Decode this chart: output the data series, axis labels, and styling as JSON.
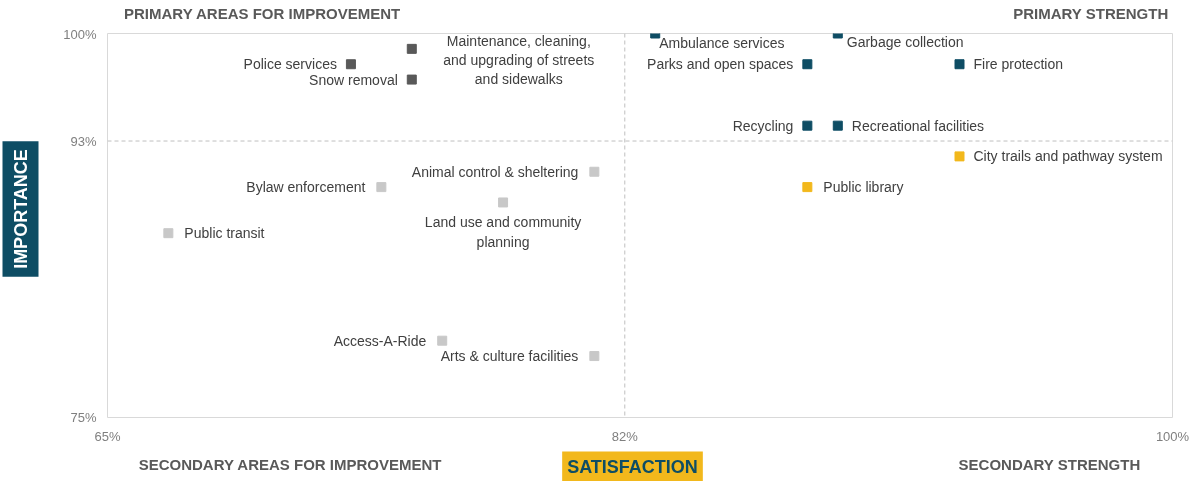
{
  "chart_data": {
    "type": "scatter",
    "xlabel": "SATISFACTION",
    "ylabel": "IMPORTANCE",
    "marker": "square",
    "xlim": [
      65,
      100
    ],
    "ylim": [
      75,
      100
    ],
    "xticks": [
      {
        "value": 65,
        "label": "65%"
      },
      {
        "value": 82,
        "label": "82%"
      },
      {
        "value": 100,
        "label": "100%"
      }
    ],
    "yticks": [
      {
        "value": 75,
        "label": "75%"
      },
      {
        "value": 93,
        "label": "93%"
      },
      {
        "value": 100,
        "label": "100%"
      }
    ],
    "x": [
      73,
      75,
      75,
      83,
      89,
      88,
      93,
      88,
      89,
      93,
      88,
      81,
      74,
      78,
      67,
      76,
      81
    ],
    "values": [
      98,
      99,
      97,
      100,
      100,
      98,
      98,
      94,
      94,
      92,
      90,
      91,
      90,
      89,
      87,
      80,
      79
    ],
    "colors": [
      "#595959",
      "#595959",
      "#595959",
      "#0e4d64",
      "#0e4d64",
      "#0e4d64",
      "#0e4d64",
      "#0e4d64",
      "#0e4d64",
      "#f2b81c",
      "#f2b81c",
      "#c8c8c8",
      "#c8c8c8",
      "#c8c8c8",
      "#c8c8c8",
      "#c8c8c8",
      "#c8c8c8"
    ],
    "ref_lines": [
      {
        "axis": "x",
        "value": 82,
        "color": "#bfbfbf",
        "line_style": "dashed"
      },
      {
        "axis": "y",
        "value": 93,
        "color": "#bfbfbf",
        "line_style": "dashed"
      }
    ],
    "annotations": [
      {
        "text": "Police services",
        "x": 73,
        "y": 98
      },
      {
        "text": "Maintenance, cleaning,\nand upgrading of streets\nand sidewalks",
        "x": 75,
        "y": 99
      },
      {
        "text": "Snow removal",
        "x": 75,
        "y": 97
      },
      {
        "text": "Ambulance services",
        "x": 83,
        "y": 100
      },
      {
        "text": "Garbage collection",
        "x": 89,
        "y": 100
      },
      {
        "text": "Parks and open spaces",
        "x": 88,
        "y": 98
      },
      {
        "text": "Fire protection",
        "x": 93,
        "y": 98
      },
      {
        "text": "Recycling",
        "x": 88,
        "y": 94
      },
      {
        "text": "Recreational facilities",
        "x": 89,
        "y": 94
      },
      {
        "text": "City trails and pathway system",
        "x": 93,
        "y": 92
      },
      {
        "text": "Public library",
        "x": 88,
        "y": 90
      },
      {
        "text": "Animal control & sheltering",
        "x": 81,
        "y": 91
      },
      {
        "text": "Bylaw enforcement",
        "x": 74,
        "y": 90
      },
      {
        "text": "Land use and community\nplanning",
        "x": 78,
        "y": 89
      },
      {
        "text": "Public transit",
        "x": 67,
        "y": 87
      },
      {
        "text": "Access-A-Ride",
        "x": 76,
        "y": 80
      },
      {
        "text": "Arts & culture facilities",
        "x": 81,
        "y": 79
      },
      "PRIMARY AREAS FOR IMPROVEMENT",
      "PRIMARY STRENGTH",
      "SECONDARY AREAS FOR IMPROVEMENT",
      "SECONDARY STRENGTH"
    ]
  }
}
